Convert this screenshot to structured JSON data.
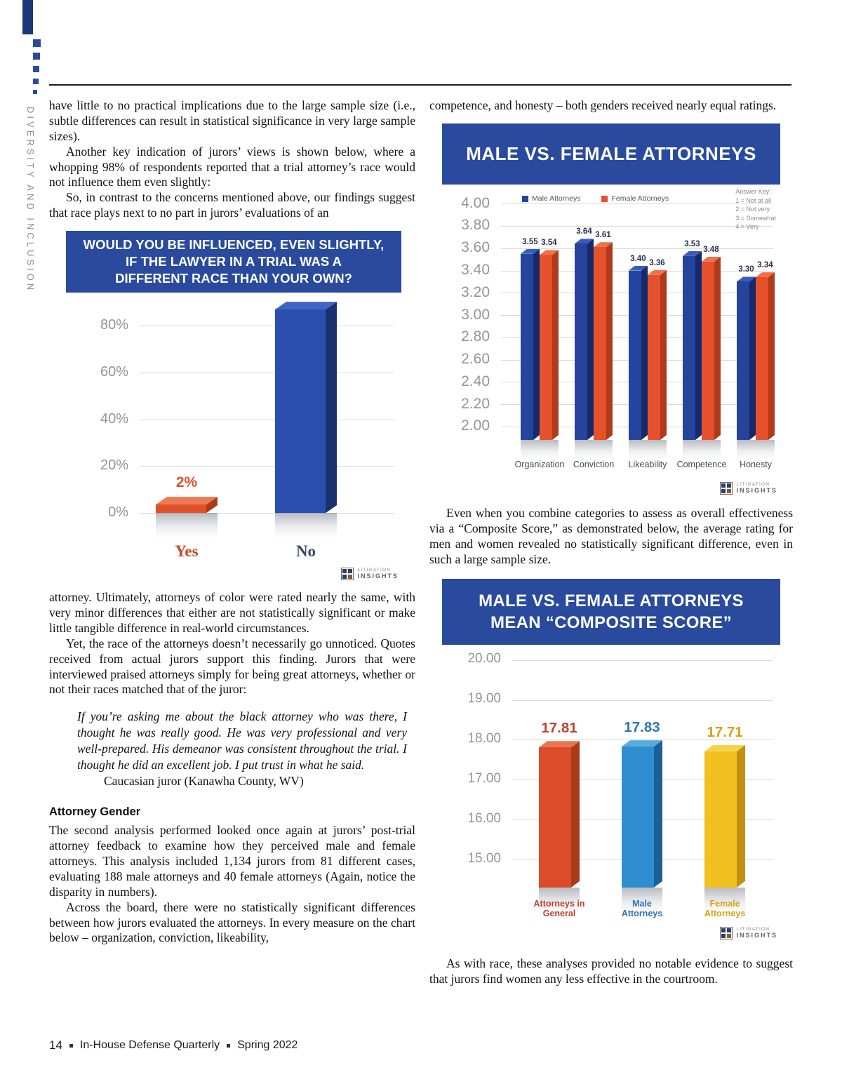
{
  "page": {
    "sidebar_vertical_text": "DIVERSITY AND INCLUSION",
    "footer": {
      "page_number": "14",
      "journal": "In-House Defense Quarterly",
      "issue": "Spring 2022"
    }
  },
  "branding": {
    "logo_line1": "LITIGATION",
    "logo_line2": "INSIGHTS"
  },
  "article": {
    "left_column": {
      "p1": "have little to no practical implications due to the large sample size (i.e., subtle differences can result in statistical significance in very large sample sizes).",
      "p2": "Another key indication of jurors’ views is shown below, where a whopping 98% of respondents reported that a trial attorney’s race would not influence them even slightly:",
      "p3": "So, in contrast to the concerns mentioned above, our findings suggest that race plays next to no part in jurors’ evaluations of an",
      "p4": "attorney. Ultimately, attorneys of color were rated nearly the same, with very minor differences that either are not statistically significant or make little tangible difference in real-world circumstances.",
      "p5": "Yet, the race of the attorneys doesn’t necessarily go unnoticed. Quotes received from actual jurors support this finding. Jurors that were interviewed praised attorneys simply for being great attorneys, whether or not their races matched that of the juror:",
      "quote": "If you’re asking me about the black attorney who was there, I thought he was really good. He was very professional and very well-prepared. His demeanor was consistent throughout the trial. I thought he did an excellent job. I put trust in what he said.",
      "quote_attribution": "Caucasian juror (Kanawha County, WV)",
      "heading_attorney_gender": "Attorney Gender",
      "p6": "The second analysis performed looked once again at jurors’ post-trial attorney feedback to examine how they perceived male and female attorneys. This analysis included 1,134 jurors from 81 different cases, evaluating 188 male attorneys and 40 female attorneys (Again, notice the disparity in numbers).",
      "p7": "Across the board, there were no statistically significant differences between how jurors evaluated the attorneys. In every measure on the chart below – organization, conviction, likeability,"
    },
    "right_column": {
      "p8": "competence, and honesty – both genders received nearly equal ratings.",
      "p9": "Even when you combine categories to assess as overall effectiveness via a “Composite Score,” as demonstrated below, the average rating for men and women revealed no statistically significant difference, even in such a large sample size.",
      "p10": "As with race, these analyses provided no notable evidence to suggest that jurors find women any less effective in the courtroom."
    }
  },
  "chart_data": [
    {
      "id": "race_influence",
      "type": "bar",
      "title_lines": [
        "WOULD YOU BE INFLUENCED, EVEN SLIGHTLY,",
        "IF THE LAWYER IN A TRIAL WAS A",
        "DIFFERENT RACE THAN YOUR OWN?"
      ],
      "categories": [
        "Yes",
        "No"
      ],
      "values": [
        2,
        98
      ],
      "ylim": [
        0,
        100
      ],
      "yticks": [
        {
          "label": "80%",
          "value": 80
        },
        {
          "label": "60%",
          "value": 60
        },
        {
          "label": "40%",
          "value": 40
        },
        {
          "label": "20%",
          "value": 20
        },
        {
          "label": "0%",
          "value": 0
        }
      ],
      "bars": [
        {
          "category": "Yes",
          "value": 2,
          "value_label": "2%",
          "face": "#e0512a",
          "side": "#a93c1b",
          "top": "#ec7a52",
          "label_color": "#e05126",
          "cat_color": "#c7462b"
        },
        {
          "category": "No",
          "value": 98,
          "value_label": "",
          "face": "#2a4fae",
          "side": "#1a3170",
          "top": "#4165c2",
          "label_color": "",
          "cat_color": "#3d4b66"
        }
      ]
    },
    {
      "id": "male_vs_female_ratings",
      "type": "grouped-bar",
      "title_lines": [
        "MALE VS. FEMALE ATTORNEYS"
      ],
      "legend": [
        {
          "label": "Male Attorneys",
          "color": "#24449e"
        },
        {
          "label": "Female Attorneys",
          "color": "#e4512c"
        }
      ],
      "answer_key": [
        "Answer Key:",
        "1 = Not at all",
        "2 = Not very",
        "3 = Somewhat",
        "4 = Very"
      ],
      "categories": [
        "Organization",
        "Conviction",
        "Likeability",
        "Competence",
        "Honesty"
      ],
      "series": [
        {
          "name": "Male Attorneys",
          "face": "#24449e",
          "side": "#16296b",
          "top": "#3a5cb8",
          "values": [
            3.55,
            3.64,
            3.4,
            3.53,
            3.3
          ]
        },
        {
          "name": "Female Attorneys",
          "face": "#e4512c",
          "side": "#b03b1a",
          "top": "#ef7148",
          "values": [
            3.54,
            3.61,
            3.36,
            3.48,
            3.34
          ]
        }
      ],
      "ylim": [
        2.0,
        4.0
      ],
      "yticks": [
        {
          "label": "4.00",
          "value": 4.0
        },
        {
          "label": "3.80",
          "value": 3.8
        },
        {
          "label": "3.60",
          "value": 3.6
        },
        {
          "label": "3.40",
          "value": 3.4
        },
        {
          "label": "3.20",
          "value": 3.2
        },
        {
          "label": "3.00",
          "value": 3.0
        },
        {
          "label": "2.80",
          "value": 2.8
        },
        {
          "label": "2.60",
          "value": 2.6
        },
        {
          "label": "2.40",
          "value": 2.4
        },
        {
          "label": "2.20",
          "value": 2.2
        },
        {
          "label": "2.00",
          "value": 2.0
        }
      ]
    },
    {
      "id": "composite_score",
      "type": "bar",
      "title_lines": [
        "MALE VS. FEMALE ATTORNEYS",
        "MEAN “COMPOSITE SCORE”"
      ],
      "categories": [
        "Attorneys in General",
        "Male Attorneys",
        "Female Attorneys"
      ],
      "values": [
        17.81,
        17.83,
        17.71
      ],
      "ylim": [
        15,
        20
      ],
      "yticks": [
        {
          "label": "20.00",
          "value": 20
        },
        {
          "label": "19.00",
          "value": 19
        },
        {
          "label": "18.00",
          "value": 18
        },
        {
          "label": "17.00",
          "value": 17
        },
        {
          "label": "16.00",
          "value": 16
        },
        {
          "label": "15.00",
          "value": 15
        }
      ],
      "bars": [
        {
          "category_lines": [
            "Attorneys in",
            "General"
          ],
          "value": 17.81,
          "face": "#dd4c2a",
          "side": "#a93a1b",
          "top": "#ea7350",
          "label_color": "#c04130",
          "cat_color": "#c0402f"
        },
        {
          "category_lines": [
            "Male",
            "Attorneys"
          ],
          "value": 17.83,
          "face": "#2f8ecf",
          "side": "#1e5f95",
          "top": "#58abdd",
          "label_color": "#2e74b5",
          "cat_color": "#2e74b5"
        },
        {
          "category_lines": [
            "Female",
            "Attorneys"
          ],
          "value": 17.71,
          "face": "#f1c01f",
          "side": "#c29114",
          "top": "#f6d24e",
          "label_color": "#d7a315",
          "cat_color": "#d7a315"
        }
      ]
    }
  ]
}
